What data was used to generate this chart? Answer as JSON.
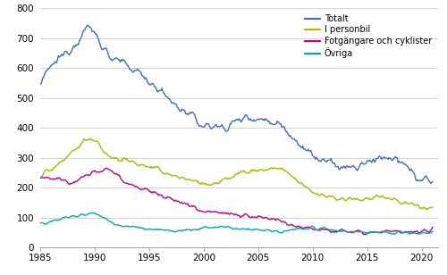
{
  "title": "",
  "xlabel": "",
  "ylabel": "",
  "xlim": [
    1985.0,
    2021.5
  ],
  "ylim": [
    0,
    800
  ],
  "yticks": [
    0,
    100,
    200,
    300,
    400,
    500,
    600,
    700,
    800
  ],
  "xticks": [
    1985,
    1990,
    1995,
    2000,
    2005,
    2010,
    2015,
    2020
  ],
  "legend_labels": [
    "Totalt",
    "I personbil",
    "Fotgängare och cyklister",
    "Övriga"
  ],
  "colors": [
    "#3d6ebf",
    "#aab800",
    "#c0008a",
    "#00aaaa"
  ],
  "line_width": 1.0,
  "background_color": "#ffffff",
  "grid_color": "#cccccc"
}
